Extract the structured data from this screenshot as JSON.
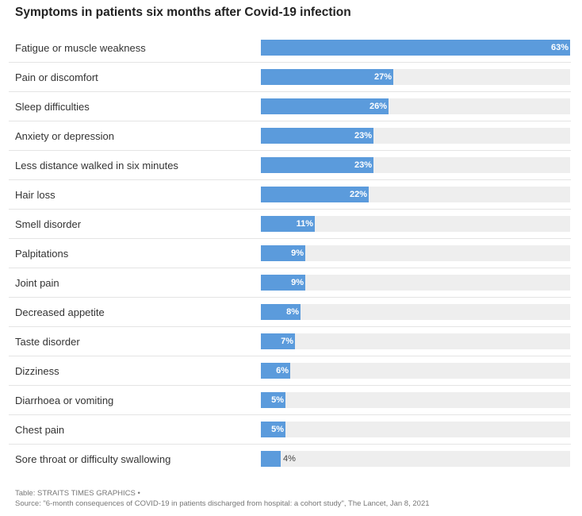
{
  "chart_data": {
    "type": "bar",
    "orientation": "horizontal",
    "title": "Symptoms in patients six months after Covid-19 infection",
    "xlim": [
      0,
      63
    ],
    "categories": [
      "Fatigue or muscle weakness",
      "Pain or discomfort",
      "Sleep difficulties",
      "Anxiety or depression",
      "Less distance walked in six minutes",
      "Hair loss",
      "Smell disorder",
      "Palpitations",
      "Joint pain",
      "Decreased appetite",
      "Taste disorder",
      "Dizziness",
      "Diarrhoea or vomiting",
      "Chest pain",
      "Sore throat or difficulty swallowing"
    ],
    "values": [
      63,
      27,
      26,
      23,
      23,
      22,
      11,
      9,
      9,
      8,
      7,
      6,
      5,
      5,
      4
    ],
    "value_labels": [
      "63%",
      "27%",
      "26%",
      "23%",
      "23%",
      "22%",
      "11%",
      "9%",
      "9%",
      "8%",
      "7%",
      "6%",
      "5%",
      "5%",
      "4%"
    ],
    "bar_color": "#5b9bdc",
    "track_color": "#eeeeee"
  },
  "footer": {
    "credit": "Table: STRAITS TIMES GRAPHICS •",
    "source": "Source: \"6-month consequences of COVID-19 in patients discharged from hospital: a cohort study\", The Lancet, Jan 8, 2021"
  }
}
